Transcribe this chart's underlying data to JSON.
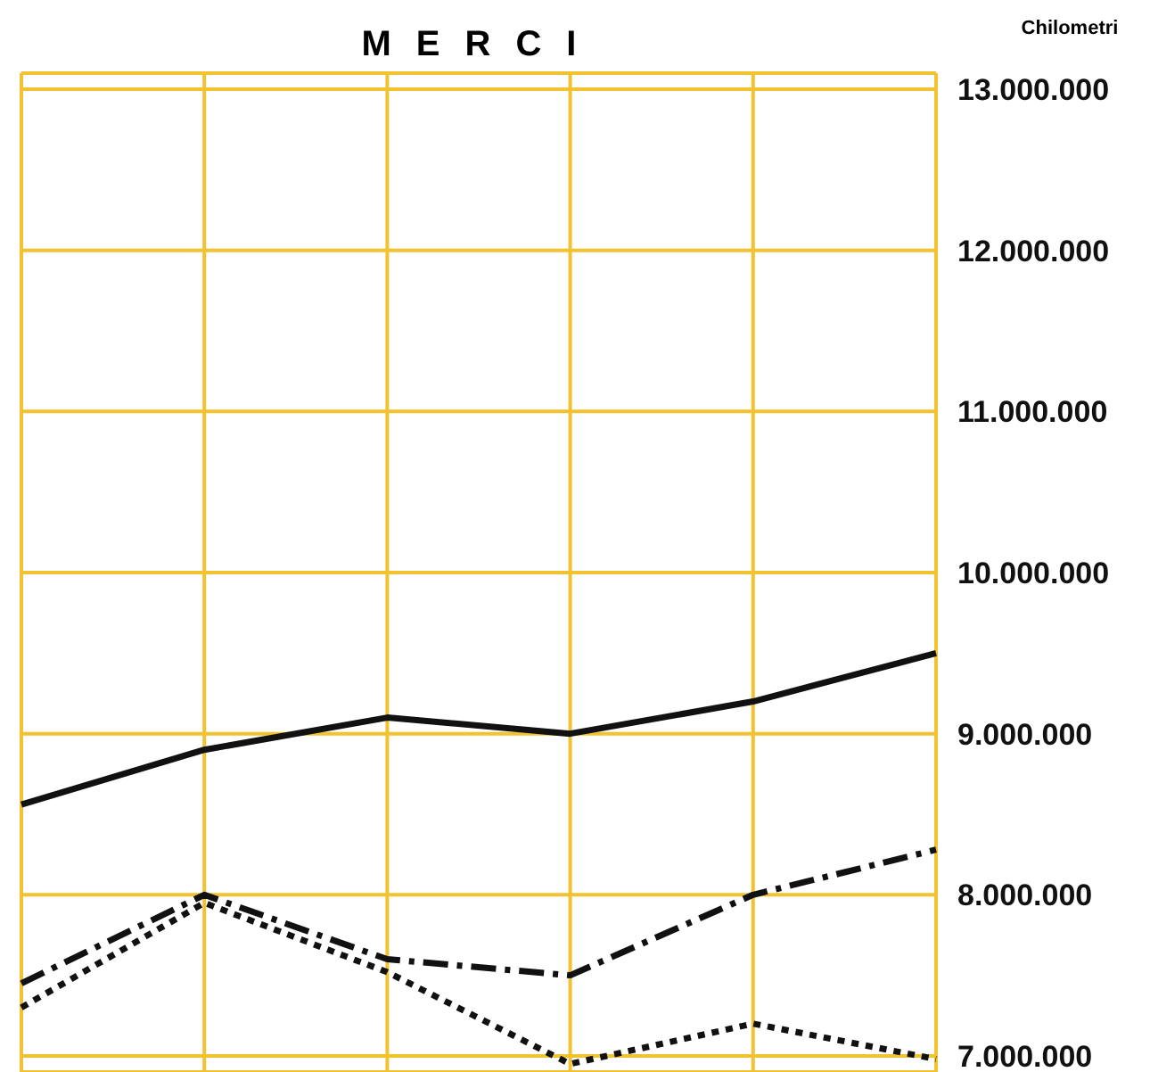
{
  "chart_data": {
    "type": "line",
    "title": "MERCI",
    "ylabel": "Chilometri",
    "categories": [
      null,
      null,
      null,
      null,
      null,
      null
    ],
    "series": [
      {
        "color": "#111111",
        "line_style": "solid",
        "values": [
          8560000,
          8900000,
          9100000,
          9000000,
          9200000,
          9500000
        ]
      },
      {
        "color": "#111111",
        "line_style": "dashed",
        "values": [
          7450000,
          8000000,
          7600000,
          7500000,
          8000000,
          8280000
        ]
      },
      {
        "color": "#111111",
        "line_style": "dotted",
        "values": [
          7300000,
          7950000,
          7520000,
          6950000,
          7200000,
          6980000
        ]
      }
    ],
    "ylim": [
      6900000,
      13100000
    ],
    "yticks": [
      {
        "value": 7000000,
        "label": "7.000.000"
      },
      {
        "value": 8000000,
        "label": "8.000.000"
      },
      {
        "value": 9000000,
        "label": "9.000.000"
      },
      {
        "value": 10000000,
        "label": "10.000.000"
      },
      {
        "value": 11000000,
        "label": "11.000.000"
      },
      {
        "value": 12000000,
        "label": "12.000.000"
      },
      {
        "value": 13000000,
        "label": "13.000.000"
      }
    ],
    "grid": true,
    "legend": false,
    "marker": "none"
  }
}
